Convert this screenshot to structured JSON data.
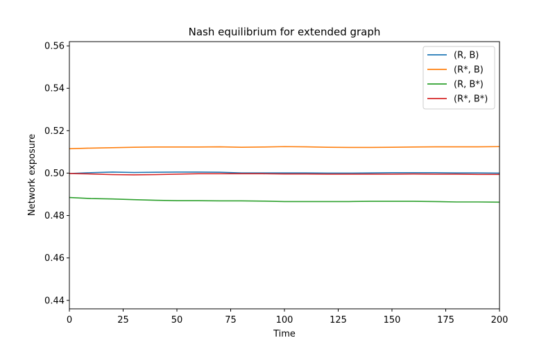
{
  "chart_data": {
    "type": "line",
    "title": "Nash equilibrium for extended graph",
    "xlabel": "Time",
    "ylabel": "Network exposure",
    "xlim": [
      0,
      200
    ],
    "ylim": [
      0.436,
      0.562
    ],
    "xticks": [
      0,
      25,
      50,
      75,
      100,
      125,
      150,
      175,
      200
    ],
    "xtick_labels": [
      "0",
      "25",
      "50",
      "75",
      "100",
      "125",
      "150",
      "175",
      "200"
    ],
    "yticks": [
      0.44,
      0.46,
      0.48,
      0.5,
      0.52,
      0.54,
      0.56
    ],
    "ytick_labels": [
      "0.44",
      "0.46",
      "0.48",
      "0.50",
      "0.52",
      "0.54",
      "0.56"
    ],
    "grid": false,
    "legend_position": "top-right",
    "x": [
      0,
      10,
      20,
      30,
      40,
      50,
      60,
      70,
      80,
      90,
      100,
      110,
      120,
      130,
      140,
      150,
      160,
      170,
      180,
      190,
      200
    ],
    "series": [
      {
        "name": "(R, B)",
        "color": "#1f77b4",
        "values": [
          0.4998,
          0.5002,
          0.5005,
          0.5003,
          0.5004,
          0.5005,
          0.5005,
          0.5004,
          0.5001,
          0.5001,
          0.5001,
          0.5001,
          0.5,
          0.5,
          0.5001,
          0.5002,
          0.5002,
          0.5002,
          0.5001,
          0.5001,
          0.5
        ]
      },
      {
        "name": "(R*, B)",
        "color": "#ff7f0e",
        "values": [
          0.5115,
          0.5118,
          0.512,
          0.5122,
          0.5123,
          0.5123,
          0.5123,
          0.5124,
          0.5122,
          0.5123,
          0.5125,
          0.5124,
          0.5122,
          0.5121,
          0.5121,
          0.5122,
          0.5123,
          0.5124,
          0.5124,
          0.5124,
          0.5125
        ]
      },
      {
        "name": "(R, B*)",
        "color": "#2ca02c",
        "values": [
          0.4885,
          0.488,
          0.4878,
          0.4875,
          0.4872,
          0.487,
          0.487,
          0.4869,
          0.4869,
          0.4868,
          0.4866,
          0.4866,
          0.4866,
          0.4866,
          0.4867,
          0.4867,
          0.4867,
          0.4866,
          0.4864,
          0.4864,
          0.4863
        ]
      },
      {
        "name": "(R*, B*)",
        "color": "#d62728",
        "values": [
          0.4998,
          0.4996,
          0.4993,
          0.4992,
          0.4993,
          0.4995,
          0.4997,
          0.4997,
          0.4997,
          0.4997,
          0.4996,
          0.4996,
          0.4995,
          0.4995,
          0.4995,
          0.4995,
          0.4996,
          0.4995,
          0.4995,
          0.4994,
          0.4994
        ]
      }
    ]
  }
}
